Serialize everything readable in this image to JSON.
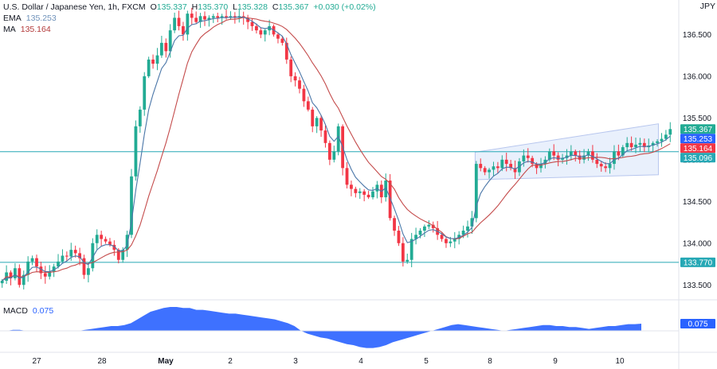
{
  "header": {
    "symbol": "U.S. Dollar / Japanese Yen, 1h, FXCM",
    "ohlc": [
      {
        "k": "O",
        "v": "135.337"
      },
      {
        "k": "H",
        "v": "135.370"
      },
      {
        "k": "L",
        "v": "135.328"
      },
      {
        "k": "C",
        "v": "135.367"
      }
    ],
    "change": "+0.030 (+0.02%)",
    "currency": "JPY"
  },
  "indicators": {
    "ema_name": "EMA",
    "ema_value": "135.253",
    "ma_name": "MA",
    "ma_value": "135.164",
    "macd_name": "MACD",
    "macd_value": "0.075"
  },
  "colors": {
    "up": "#22ab94",
    "down": "#f23645",
    "ema": "#4a76a8",
    "ma": "#c44b4b",
    "hline": "#26a8b5",
    "channel": "#d7e3fa",
    "macd": "#2962ff"
  },
  "chart_data": [
    {
      "type": "candlestick",
      "title": "U.S. Dollar / Japanese Yen, 1h, FXCM",
      "ylabel": "JPY",
      "ylim": [
        133.35,
        136.78
      ],
      "y_ticks": [
        "136.500",
        "136.000",
        "135.500",
        "135.000",
        "134.500",
        "134.000",
        "133.500"
      ],
      "x_ticks": [
        "27",
        "28",
        "May",
        "2",
        "3",
        "4",
        "5",
        "8",
        "9",
        "10"
      ],
      "price_labels": [
        {
          "label": "135.367",
          "value": 135.367,
          "kind": "last",
          "color": "#22ab94"
        },
        {
          "label": "135.253",
          "value": 135.253,
          "kind": "ema",
          "color": "#2962ff"
        },
        {
          "label": "135.164",
          "value": 135.164,
          "kind": "ma",
          "color": "#f23645"
        },
        {
          "label": "135.096",
          "value": 135.096,
          "kind": "line",
          "color": "#26a8b5"
        },
        {
          "label": "133.770",
          "value": 133.77,
          "kind": "line",
          "color": "#26a8b5"
        }
      ],
      "horizontal_lines": [
        135.096,
        133.77
      ],
      "channel": {
        "upper": [
          [
            0.7,
            135.09
          ],
          [
            0.97,
            135.43
          ]
        ],
        "lower": [
          [
            0.7,
            134.76
          ],
          [
            0.97,
            134.82
          ]
        ]
      },
      "close_path": [
        133.55,
        133.65,
        133.58,
        133.7,
        133.5,
        133.62,
        133.78,
        133.82,
        133.72,
        133.64,
        133.6,
        133.66,
        133.72,
        133.78,
        133.85,
        133.84,
        133.92,
        133.88,
        133.82,
        133.62,
        133.7,
        134.0,
        134.1,
        134.05,
        134.02,
        133.98,
        133.92,
        133.8,
        133.92,
        134.1,
        134.8,
        135.4,
        135.6,
        136.0,
        136.2,
        136.15,
        136.25,
        136.4,
        136.3,
        136.55,
        136.7,
        136.6,
        136.5,
        136.75,
        136.7,
        136.65,
        136.72,
        136.68,
        136.7,
        136.72,
        136.7,
        136.72,
        136.7,
        136.72,
        136.7,
        136.72,
        136.7,
        136.65,
        136.6,
        136.55,
        136.5,
        136.55,
        136.6,
        136.5,
        136.45,
        136.4,
        136.2,
        136.0,
        135.95,
        135.85,
        135.7,
        135.6,
        135.4,
        135.5,
        135.35,
        135.2,
        135.0,
        135.1,
        135.4,
        134.9,
        134.7,
        134.65,
        134.6,
        134.62,
        134.58,
        134.55,
        134.62,
        134.7,
        134.55,
        134.75,
        134.3,
        134.15,
        134.0,
        133.78,
        133.8,
        134.05,
        134.1,
        134.15,
        134.2,
        134.22,
        134.18,
        134.1,
        134.05,
        134.0,
        134.02,
        134.05,
        134.1,
        134.15,
        134.2,
        134.3,
        134.95,
        134.9,
        134.85,
        134.88,
        134.92,
        134.9,
        135.0,
        134.95,
        134.9,
        134.85,
        134.98,
        135.05,
        135.02,
        134.95,
        134.9,
        134.95,
        135.0,
        135.1,
        135.05,
        135.0,
        135.02,
        135.05,
        135.1,
        135.05,
        135.0,
        135.05,
        135.1,
        135.0,
        134.95,
        134.92,
        134.9,
        134.95,
        135.1,
        135.05,
        135.15,
        135.2,
        135.15,
        135.18,
        135.2,
        135.15,
        135.17,
        135.2,
        135.22,
        135.25,
        135.3,
        135.367
      ]
    },
    {
      "type": "area",
      "title": "MACD",
      "series": [
        {
          "name": "MACD",
          "values": [
            0.0,
            0.0,
            0.01,
            0.01,
            0.0,
            0.0,
            0.0,
            0.0,
            0.0,
            0.0,
            0.0,
            0.0,
            0.0,
            0.01,
            0.02,
            0.03,
            0.04,
            0.05,
            0.05,
            0.06,
            0.08,
            0.12,
            0.16,
            0.2,
            0.22,
            0.24,
            0.25,
            0.25,
            0.24,
            0.24,
            0.22,
            0.22,
            0.21,
            0.2,
            0.19,
            0.18,
            0.18,
            0.17,
            0.16,
            0.15,
            0.14,
            0.13,
            0.12,
            0.1,
            0.08,
            0.05,
            0.0,
            -0.03,
            -0.05,
            -0.07,
            -0.08,
            -0.1,
            -0.12,
            -0.14,
            -0.15,
            -0.17,
            -0.18,
            -0.18,
            -0.17,
            -0.15,
            -0.12,
            -0.1,
            -0.08,
            -0.06,
            -0.04,
            -0.02,
            0.0,
            0.02,
            0.04,
            0.06,
            0.07,
            0.06,
            0.05,
            0.04,
            0.03,
            0.02,
            0.01,
            0.0,
            0.01,
            0.02,
            0.03,
            0.04,
            0.05,
            0.06,
            0.06,
            0.05,
            0.05,
            0.04,
            0.04,
            0.03,
            0.02,
            0.03,
            0.04,
            0.05,
            0.05,
            0.06,
            0.07,
            0.07,
            0.075
          ]
        }
      ],
      "ylim": [
        -0.2,
        0.3
      ],
      "value_label": "0.075"
    }
  ]
}
